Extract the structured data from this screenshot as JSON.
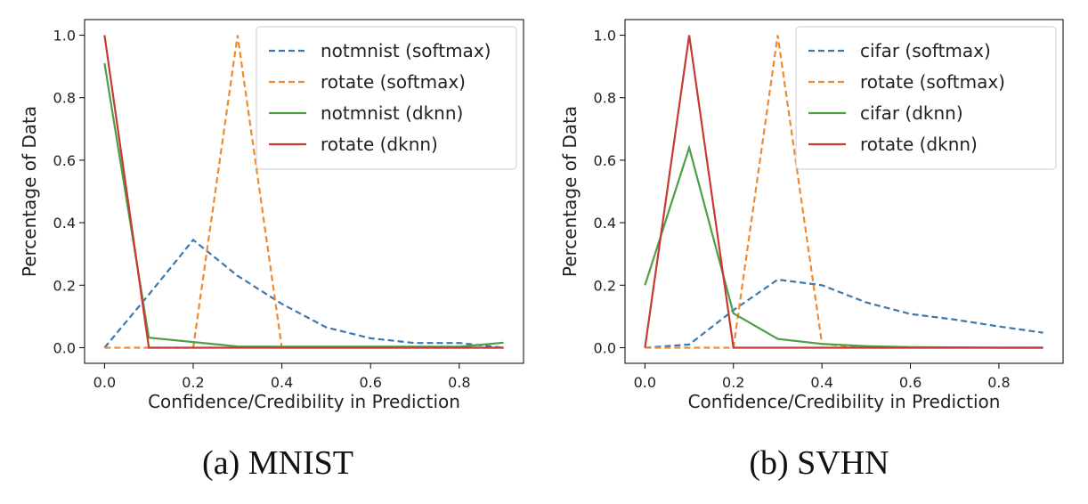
{
  "captions": [
    "(a) MNIST",
    "(b) SVHN"
  ],
  "chart_data": [
    {
      "type": "line",
      "title": "",
      "caption": "(a) MNIST",
      "xlabel": "Confidence/Credibility in Prediction",
      "ylabel": "Percentage of Data",
      "xlim": [
        -0.045,
        0.945
      ],
      "ylim": [
        -0.05,
        1.05
      ],
      "xticks": [
        0.0,
        0.2,
        0.4,
        0.6,
        0.8
      ],
      "xtick_labels": [
        "0.0",
        "0.2",
        "0.4",
        "0.6",
        "0.8"
      ],
      "yticks": [
        0.0,
        0.2,
        0.4,
        0.6,
        0.8,
        1.0
      ],
      "ytick_labels": [
        "0.0",
        "0.2",
        "0.4",
        "0.6",
        "0.8",
        "1.0"
      ],
      "legend_position": "top-right",
      "grid": false,
      "x": [
        0.0,
        0.1,
        0.2,
        0.3,
        0.4,
        0.5,
        0.6,
        0.7,
        0.8,
        0.9
      ],
      "series": [
        {
          "name": "notmnist (softmax)",
          "style": "dashed",
          "color": "#3b78b0",
          "values": [
            0.0,
            0.17,
            0.345,
            0.23,
            0.14,
            0.065,
            0.03,
            0.015,
            0.015,
            0.0
          ]
        },
        {
          "name": "rotate (softmax)",
          "style": "dashed",
          "color": "#f08a2e",
          "values": [
            0.0,
            0.0,
            0.0,
            1.0,
            0.0,
            0.0,
            0.0,
            0.0,
            0.0,
            0.0
          ]
        },
        {
          "name": "notmnist (dknn)",
          "style": "solid",
          "color": "#4e9e45",
          "values": [
            0.91,
            0.032,
            0.018,
            0.004,
            0.003,
            0.003,
            0.003,
            0.003,
            0.003,
            0.016
          ]
        },
        {
          "name": "rotate (dknn)",
          "style": "solid",
          "color": "#c53a32",
          "values": [
            1.0,
            0.0,
            0.0,
            0.0,
            0.0,
            0.0,
            0.0,
            0.0,
            0.0,
            0.0
          ]
        }
      ]
    },
    {
      "type": "line",
      "title": "",
      "caption": "(b) SVHN",
      "xlabel": "Confidence/Credibility in Prediction",
      "ylabel": "Percentage of Data",
      "xlim": [
        -0.045,
        0.945
      ],
      "ylim": [
        -0.05,
        1.05
      ],
      "xticks": [
        0.0,
        0.2,
        0.4,
        0.6,
        0.8
      ],
      "xtick_labels": [
        "0.0",
        "0.2",
        "0.4",
        "0.6",
        "0.8"
      ],
      "yticks": [
        0.0,
        0.2,
        0.4,
        0.6,
        0.8,
        1.0
      ],
      "ytick_labels": [
        "0.0",
        "0.2",
        "0.4",
        "0.6",
        "0.8",
        "1.0"
      ],
      "legend_position": "top-right",
      "grid": false,
      "x": [
        0.0,
        0.1,
        0.2,
        0.3,
        0.4,
        0.5,
        0.6,
        0.7,
        0.8,
        0.9
      ],
      "series": [
        {
          "name": "cifar (softmax)",
          "style": "dashed",
          "color": "#3b78b0",
          "values": [
            0.0,
            0.01,
            0.12,
            0.218,
            0.2,
            0.145,
            0.108,
            0.09,
            0.068,
            0.048
          ]
        },
        {
          "name": "rotate (softmax)",
          "style": "dashed",
          "color": "#f08a2e",
          "values": [
            0.0,
            0.0,
            0.0,
            1.0,
            0.012,
            0.0,
            0.0,
            0.0,
            0.0,
            0.0
          ]
        },
        {
          "name": "cifar (dknn)",
          "style": "solid",
          "color": "#4e9e45",
          "values": [
            0.2,
            0.64,
            0.11,
            0.028,
            0.012,
            0.005,
            0.002,
            0.001,
            0.0,
            0.0
          ]
        },
        {
          "name": "rotate (dknn)",
          "style": "solid",
          "color": "#c53a32",
          "values": [
            0.0,
            1.0,
            0.0,
            0.0,
            0.0,
            0.0,
            0.0,
            0.0,
            0.0,
            0.0
          ]
        }
      ]
    }
  ]
}
